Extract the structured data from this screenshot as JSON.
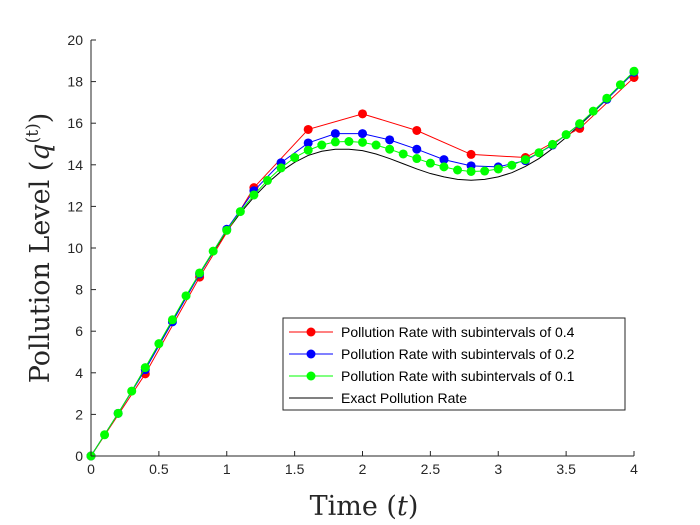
{
  "chart_data": {
    "type": "line",
    "title": "",
    "xlabel": "Time (t)",
    "xlabel_main": "Time (",
    "xlabel_var": "t",
    "xlabel_end": ")",
    "ylabel": "Pollution Level (q^(t))",
    "ylabel_main": "Pollution Level (",
    "ylabel_var": "q",
    "ylabel_sup": "(t)",
    "ylabel_end": ")",
    "xlim": [
      0,
      4
    ],
    "ylim": [
      0,
      20
    ],
    "xticks": [
      0,
      0.5,
      1,
      1.5,
      2,
      2.5,
      3,
      3.5,
      4
    ],
    "xtick_labels": [
      "0",
      "0.5",
      "1",
      "1.5",
      "2",
      "2.5",
      "3",
      "3.5",
      "4"
    ],
    "yticks": [
      0,
      2,
      4,
      6,
      8,
      10,
      12,
      14,
      16,
      18,
      20
    ],
    "ytick_labels": [
      "0",
      "2",
      "4",
      "6",
      "8",
      "10",
      "12",
      "14",
      "16",
      "18",
      "20"
    ],
    "grid": false,
    "legend_position": "bottom-right",
    "series": [
      {
        "name": "Pollution Rate with subintervals of 0.4",
        "color": "#ff0000",
        "marker": "circle",
        "x": [
          0,
          0.4,
          0.8,
          1.2,
          1.6,
          2.0,
          2.4,
          2.8,
          3.2,
          3.6,
          4.0
        ],
        "y": [
          0,
          3.95,
          8.6,
          12.9,
          15.7,
          16.45,
          15.65,
          14.5,
          14.35,
          15.75,
          18.2
        ]
      },
      {
        "name": "Pollution Rate with subintervals of 0.2",
        "color": "#0000ff",
        "marker": "circle",
        "x": [
          0,
          0.2,
          0.4,
          0.6,
          0.8,
          1.0,
          1.2,
          1.4,
          1.6,
          1.8,
          2.0,
          2.2,
          2.4,
          2.6,
          2.8,
          3.0,
          3.2,
          3.4,
          3.6,
          3.8,
          4.0
        ],
        "y": [
          0,
          2.05,
          4.15,
          6.45,
          8.75,
          10.9,
          12.75,
          14.1,
          15.05,
          15.5,
          15.5,
          15.2,
          14.75,
          14.25,
          13.95,
          13.9,
          14.2,
          14.95,
          15.95,
          17.15,
          18.45
        ]
      },
      {
        "name": "Pollution Rate with subintervals of 0.1",
        "color": "#00ff00",
        "marker": "circle",
        "x": [
          0,
          0.1,
          0.2,
          0.3,
          0.4,
          0.5,
          0.6,
          0.7,
          0.8,
          0.9,
          1.0,
          1.1,
          1.2,
          1.3,
          1.4,
          1.5,
          1.6,
          1.7,
          1.8,
          1.9,
          2.0,
          2.1,
          2.2,
          2.3,
          2.4,
          2.5,
          2.6,
          2.7,
          2.8,
          2.9,
          3.0,
          3.1,
          3.2,
          3.3,
          3.4,
          3.5,
          3.6,
          3.7,
          3.8,
          3.9,
          4.0
        ],
        "y": [
          0,
          1.02,
          2.05,
          3.12,
          4.25,
          5.4,
          6.55,
          7.7,
          8.8,
          9.85,
          10.85,
          11.75,
          12.55,
          13.25,
          13.85,
          14.35,
          14.7,
          14.95,
          15.1,
          15.12,
          15.08,
          14.95,
          14.75,
          14.52,
          14.3,
          14.08,
          13.9,
          13.75,
          13.68,
          13.7,
          13.8,
          13.98,
          14.25,
          14.58,
          14.98,
          15.45,
          15.98,
          16.58,
          17.2,
          17.85,
          18.5
        ]
      },
      {
        "name": "Exact Pollution Rate",
        "color": "#000000",
        "marker": "none",
        "x": [
          0,
          0.1,
          0.2,
          0.3,
          0.4,
          0.5,
          0.6,
          0.7,
          0.8,
          0.9,
          1.0,
          1.1,
          1.2,
          1.3,
          1.4,
          1.5,
          1.6,
          1.7,
          1.8,
          1.9,
          2.0,
          2.1,
          2.2,
          2.3,
          2.4,
          2.5,
          2.6,
          2.7,
          2.8,
          2.9,
          3.0,
          3.1,
          3.2,
          3.3,
          3.4,
          3.5,
          3.6,
          3.7,
          3.8,
          3.9,
          4.0
        ],
        "y": [
          0,
          1.02,
          2.05,
          3.12,
          4.24,
          5.38,
          6.52,
          7.65,
          8.75,
          9.8,
          10.8,
          11.68,
          12.45,
          13.12,
          13.68,
          14.12,
          14.45,
          14.65,
          14.75,
          14.75,
          14.68,
          14.52,
          14.3,
          14.05,
          13.8,
          13.58,
          13.42,
          13.3,
          13.26,
          13.3,
          13.42,
          13.62,
          13.92,
          14.3,
          14.78,
          15.32,
          15.9,
          16.52,
          17.15,
          17.8,
          18.45
        ]
      }
    ]
  }
}
